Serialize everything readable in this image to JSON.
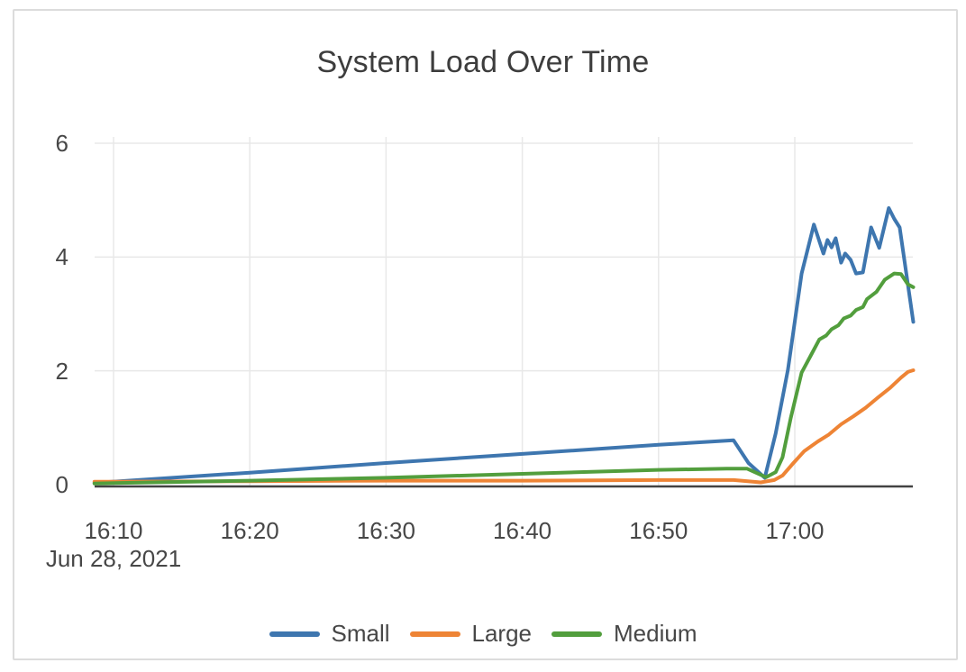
{
  "chart_data": {
    "type": "line",
    "title": "System Load Over Time",
    "x_axis": {
      "tick_labels": [
        "16:10",
        "16:20",
        "16:30",
        "16:40",
        "16:50",
        "17:00"
      ],
      "tick_minutes_after_1600": [
        10,
        20,
        30,
        40,
        50,
        60
      ],
      "date_label": "Jun 28, 2021",
      "range_minutes_after_1600": [
        8.6,
        68.7
      ],
      "grid": true
    },
    "y_axis": {
      "tick_labels": [
        "0",
        "2",
        "4",
        "6"
      ],
      "tick_values": [
        0,
        2,
        4,
        6
      ],
      "range": [
        0,
        6.15
      ],
      "grid": true
    },
    "legend_position": "bottom-center",
    "series": [
      {
        "name": "Small",
        "color": "#3e76af",
        "points_t_v": [
          [
            8.6,
            0.03
          ],
          [
            20,
            0.21
          ],
          [
            30,
            0.38
          ],
          [
            40,
            0.54
          ],
          [
            50,
            0.7
          ],
          [
            55.5,
            0.78
          ],
          [
            56.6,
            0.38
          ],
          [
            57.8,
            0.12
          ],
          [
            58.6,
            0.9
          ],
          [
            59.5,
            2.02
          ],
          [
            60.5,
            3.71
          ],
          [
            61.4,
            4.57
          ],
          [
            62.1,
            4.06
          ],
          [
            62.4,
            4.3
          ],
          [
            62.7,
            4.17
          ],
          [
            63.0,
            4.33
          ],
          [
            63.4,
            3.9
          ],
          [
            63.7,
            4.06
          ],
          [
            64.1,
            3.95
          ],
          [
            64.5,
            3.71
          ],
          [
            65.0,
            3.73
          ],
          [
            65.6,
            4.52
          ],
          [
            66.2,
            4.16
          ],
          [
            66.9,
            4.86
          ],
          [
            67.3,
            4.67
          ],
          [
            67.7,
            4.52
          ],
          [
            68.7,
            2.86
          ]
        ]
      },
      {
        "name": "Large",
        "color": "#ee8435",
        "points_t_v": [
          [
            8.6,
            0.05
          ],
          [
            20,
            0.06
          ],
          [
            30,
            0.07
          ],
          [
            40,
            0.07
          ],
          [
            50,
            0.08
          ],
          [
            55.5,
            0.08
          ],
          [
            57.5,
            0.04
          ],
          [
            58.5,
            0.08
          ],
          [
            59.1,
            0.16
          ],
          [
            59.9,
            0.38
          ],
          [
            60.7,
            0.59
          ],
          [
            61.7,
            0.76
          ],
          [
            62.5,
            0.88
          ],
          [
            63.4,
            1.06
          ],
          [
            64.3,
            1.2
          ],
          [
            65.2,
            1.35
          ],
          [
            66.0,
            1.51
          ],
          [
            67.0,
            1.7
          ],
          [
            67.8,
            1.88
          ],
          [
            68.3,
            1.98
          ],
          [
            68.7,
            2.01
          ]
        ]
      },
      {
        "name": "Medium",
        "color": "#529e3d",
        "points_t_v": [
          [
            8.6,
            0.02
          ],
          [
            20,
            0.07
          ],
          [
            30,
            0.12
          ],
          [
            40,
            0.19
          ],
          [
            50,
            0.26
          ],
          [
            55.0,
            0.28
          ],
          [
            56.5,
            0.28
          ],
          [
            57.9,
            0.13
          ],
          [
            58.6,
            0.22
          ],
          [
            59.1,
            0.48
          ],
          [
            59.7,
            1.17
          ],
          [
            60.5,
            1.97
          ],
          [
            61.2,
            2.28
          ],
          [
            61.8,
            2.55
          ],
          [
            62.3,
            2.62
          ],
          [
            62.7,
            2.73
          ],
          [
            63.2,
            2.8
          ],
          [
            63.6,
            2.92
          ],
          [
            64.1,
            2.97
          ],
          [
            64.5,
            3.07
          ],
          [
            65.0,
            3.12
          ],
          [
            65.3,
            3.26
          ],
          [
            66.0,
            3.39
          ],
          [
            66.6,
            3.6
          ],
          [
            67.3,
            3.71
          ],
          [
            67.8,
            3.7
          ],
          [
            68.3,
            3.52
          ],
          [
            68.7,
            3.47
          ]
        ]
      }
    ]
  },
  "colors": {
    "grid": "#e8e8e8",
    "axis_line": "#424242",
    "text": "#474747",
    "card_border": "#dcdcdc",
    "background": "#ffffff"
  }
}
